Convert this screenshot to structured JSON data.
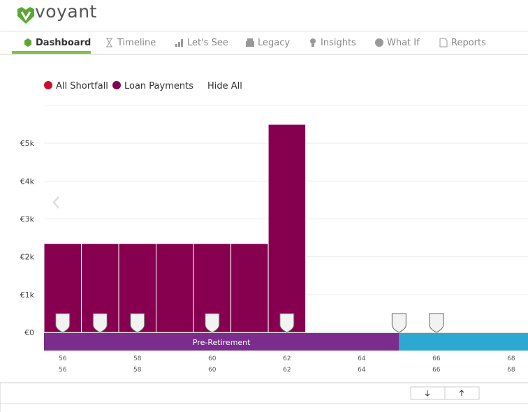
{
  "header": {
    "logo": "voyant"
  },
  "nav": {
    "tabs": [
      "Dashboard",
      "Timeline",
      "Let's See",
      "Legacy",
      "Insights",
      "What If",
      "Reports"
    ],
    "active": 0
  },
  "legend_toggle": "Hide All",
  "chart_data": {
    "type": "bar",
    "x": [
      56,
      57,
      58,
      59,
      60,
      61,
      62
    ],
    "series": [
      {
        "name": "All Shortfall",
        "color": "#c8102e",
        "values": [
          0,
          0,
          0,
          0,
          0,
          0,
          0
        ]
      },
      {
        "name": "Loan Payments",
        "color": "#86004f",
        "values": [
          2350,
          2350,
          2350,
          2350,
          2350,
          2350,
          5500
        ]
      }
    ],
    "xlim": [
      55.5,
      68.45
    ],
    "xticks": [
      56,
      58,
      60,
      62,
      64,
      66,
      68
    ],
    "ylim": [
      0,
      6000
    ],
    "yticks": [
      {
        "value": 0,
        "label": "€0"
      },
      {
        "value": 1000,
        "label": "€1k"
      },
      {
        "value": 2000,
        "label": "€2k"
      },
      {
        "value": 3000,
        "label": "€3k"
      },
      {
        "value": 4000,
        "label": "€4k"
      },
      {
        "value": 5000,
        "label": "€5k"
      }
    ],
    "grid": true,
    "phases": [
      {
        "label": "Pre-Retirement",
        "start": 55.5,
        "end": 65,
        "color": "#7b2d8e"
      },
      {
        "start": 65,
        "end": 68.45,
        "color": "#2ca9d2"
      }
    ],
    "event_ages": [
      56,
      57,
      58,
      60,
      62,
      65,
      66
    ]
  }
}
